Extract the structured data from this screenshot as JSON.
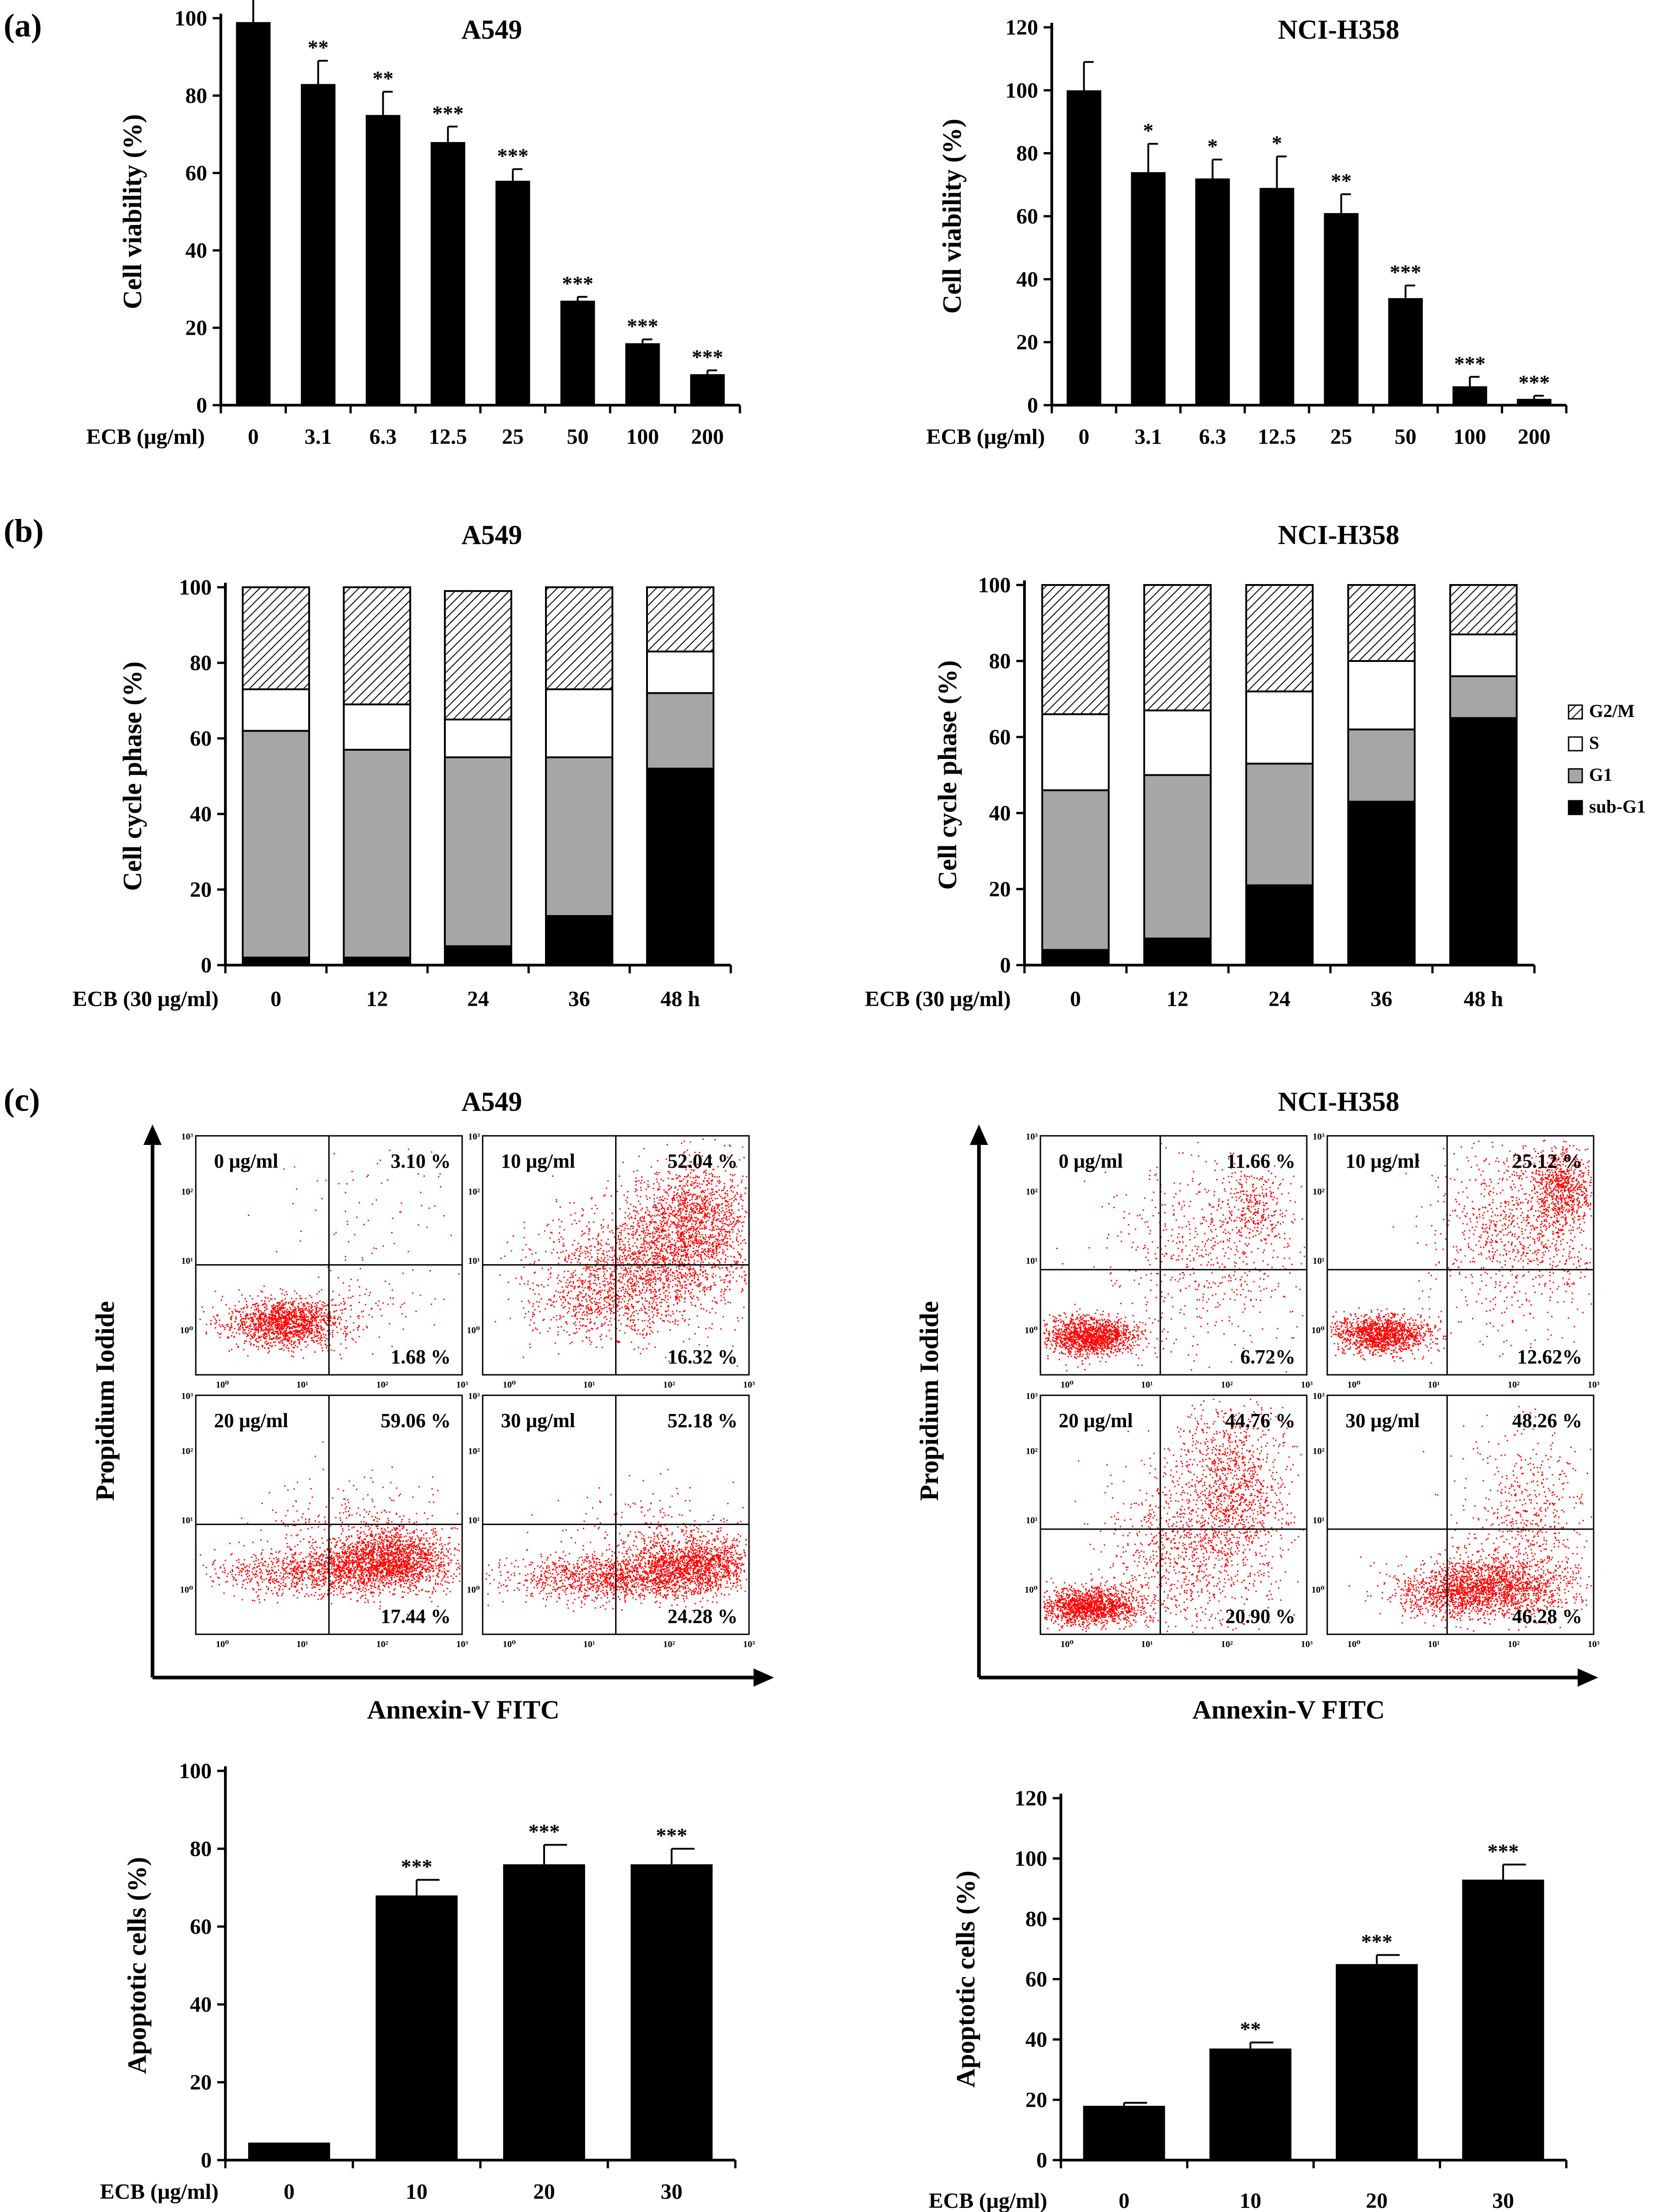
{
  "panels": {
    "a": "(a)",
    "b": "(b)",
    "c": "(c)"
  },
  "colors": {
    "bar": "#000000",
    "g2m_hatch": "#000000",
    "s": "#ffffff",
    "g1": "#a6a6a6",
    "subg1": "#000000",
    "dots": "#ff0000"
  },
  "chart_data": [
    {
      "id": "a-a549",
      "type": "bar",
      "title": "A549",
      "xlabel": "ECB (μg/ml)",
      "ylabel": "Cell viability (%)",
      "categories": [
        "0",
        "3.1",
        "6.3",
        "12.5",
        "25",
        "50",
        "100",
        "200"
      ],
      "values": [
        99,
        83,
        75,
        68,
        58,
        27,
        16,
        8
      ],
      "errors": [
        6,
        6,
        6,
        4,
        3,
        1,
        1,
        1
      ],
      "significance": [
        "",
        "**",
        "**",
        "***",
        "***",
        "***",
        "***",
        "***"
      ],
      "ylim": [
        0,
        100
      ],
      "yticks": [
        0,
        20,
        40,
        60,
        80,
        100
      ]
    },
    {
      "id": "a-h358",
      "type": "bar",
      "title": "NCI-H358",
      "xlabel": "ECB (μg/ml)",
      "ylabel": "Cell viability (%)",
      "categories": [
        "0",
        "3.1",
        "6.3",
        "12.5",
        "25",
        "50",
        "100",
        "200"
      ],
      "values": [
        100,
        74,
        72,
        69,
        61,
        34,
        6,
        2
      ],
      "errors": [
        9,
        9,
        6,
        10,
        6,
        4,
        3,
        1
      ],
      "significance": [
        "",
        "*",
        "*",
        "*",
        "**",
        "***",
        "***",
        "***"
      ],
      "ylim": [
        0,
        120
      ],
      "yticks": [
        0,
        20,
        40,
        60,
        80,
        100,
        120
      ]
    },
    {
      "id": "b-a549",
      "type": "bar",
      "stacked": true,
      "title": "A549",
      "xlabel": "ECB (30 μg/ml)",
      "ylabel": "Cell cycle phase (%)",
      "categories": [
        "0",
        "12",
        "24",
        "36",
        "48 h"
      ],
      "series": [
        {
          "name": "sub-G1",
          "values": [
            2,
            2,
            5,
            13,
            52
          ]
        },
        {
          "name": "G1",
          "values": [
            60,
            55,
            50,
            42,
            20
          ]
        },
        {
          "name": "S",
          "values": [
            11,
            12,
            10,
            18,
            11
          ]
        },
        {
          "name": "G2/M",
          "values": [
            27,
            31,
            34,
            27,
            17
          ]
        }
      ],
      "ylim": [
        0,
        100
      ],
      "yticks": [
        0,
        20,
        40,
        60,
        80,
        100
      ]
    },
    {
      "id": "b-h358",
      "type": "bar",
      "stacked": true,
      "title": "NCI-H358",
      "xlabel": "ECB (30 μg/ml)",
      "ylabel": "Cell cycle phase (%)",
      "categories": [
        "0",
        "12",
        "24",
        "36",
        "48 h"
      ],
      "series": [
        {
          "name": "sub-G1",
          "values": [
            4,
            7,
            21,
            43,
            65
          ]
        },
        {
          "name": "G1",
          "values": [
            42,
            43,
            32,
            19,
            11
          ]
        },
        {
          "name": "S",
          "values": [
            20,
            17,
            19,
            18,
            11
          ]
        },
        {
          "name": "G2/M",
          "values": [
            34,
            33,
            28,
            20,
            13
          ]
        }
      ],
      "legend": [
        "G2/M",
        "S",
        "G1",
        "sub-G1"
      ],
      "ylim": [
        0,
        100
      ],
      "yticks": [
        0,
        20,
        40,
        60,
        80,
        100
      ]
    },
    {
      "id": "c-a549-facs",
      "type": "scatter",
      "title": "A549",
      "xlabel": "Annexin-V FITC",
      "ylabel": "Propidium Iodide",
      "logticks": [
        "10⁰",
        "10¹",
        "10²",
        "10³"
      ],
      "plots": [
        {
          "label": "0 μg/ml",
          "upper_right": "3.10 %",
          "lower_right": "1.68 %"
        },
        {
          "label": "10 μg/ml",
          "upper_right": "52.04 %",
          "lower_right": "16.32 %"
        },
        {
          "label": "20 μg/ml",
          "upper_right": "59.06 %",
          "lower_right": "17.44 %"
        },
        {
          "label": "30 μg/ml",
          "upper_right": "52.18 %",
          "lower_right": "24.28 %"
        }
      ]
    },
    {
      "id": "c-h358-facs",
      "type": "scatter",
      "title": "NCI-H358",
      "xlabel": "Annexin-V FITC",
      "ylabel": "Propidium Iodide",
      "logticks": [
        "10⁰",
        "10¹",
        "10²",
        "10³"
      ],
      "plots": [
        {
          "label": "0 μg/ml",
          "upper_right": "11.66 %",
          "lower_right": "6.72%"
        },
        {
          "label": "10 μg/ml",
          "upper_right": "25.12 %",
          "lower_right": "12.62%"
        },
        {
          "label": "20 μg/ml",
          "upper_right": "44.76 %",
          "lower_right": "20.90 %"
        },
        {
          "label": "30 μg/ml",
          "upper_right": "48.26 %",
          "lower_right": "46.28 %"
        }
      ]
    },
    {
      "id": "c-a549-apop",
      "type": "bar",
      "xlabel": "ECB (μg/ml)",
      "ylabel": "Apoptotic cells (%)",
      "categories": [
        "0",
        "10",
        "20",
        "30"
      ],
      "values": [
        4.5,
        68,
        76,
        76
      ],
      "errors": [
        0,
        4,
        5,
        4
      ],
      "significance": [
        "",
        "***",
        "***",
        "***"
      ],
      "ylim": [
        0,
        100
      ],
      "yticks": [
        0,
        20,
        40,
        60,
        80,
        100
      ]
    },
    {
      "id": "c-h358-apop",
      "type": "bar",
      "xlabel": "ECB (μg/ml)",
      "ylabel": "Apoptotic cells (%)",
      "categories": [
        "0",
        "10",
        "20",
        "30"
      ],
      "values": [
        18,
        37,
        65,
        93
      ],
      "errors": [
        1,
        2,
        3,
        5
      ],
      "significance": [
        "",
        "**",
        "***",
        "***"
      ],
      "ylim": [
        0,
        120
      ],
      "yticks": [
        0,
        20,
        40,
        60,
        80,
        100,
        120
      ]
    }
  ]
}
